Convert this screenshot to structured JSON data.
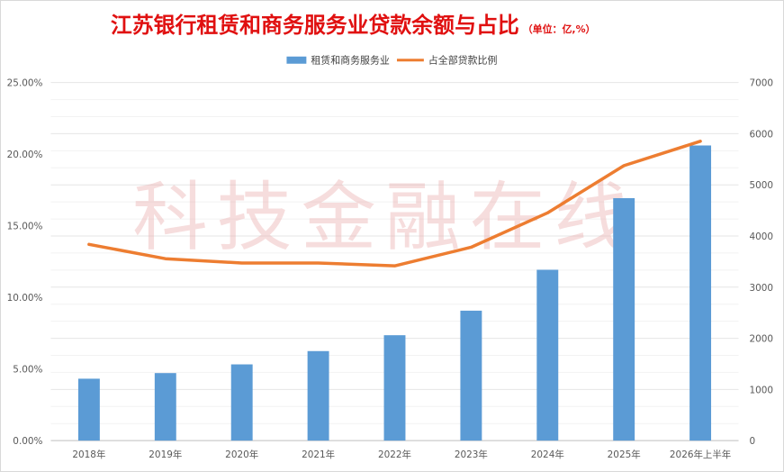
{
  "chart_data": {
    "type": "bar+line",
    "title": "江苏银行租赁和商务服务业贷款余额与占比",
    "title_unit": "（单位：亿,%）",
    "watermark": "科技金融在线",
    "categories": [
      "2018年",
      "2019年",
      "2020年",
      "2021年",
      "2022年",
      "2023年",
      "2024年",
      "2025年",
      "2026年上半年"
    ],
    "series": [
      {
        "name": "租赁和商务服务业",
        "type": "bar",
        "axis": "right",
        "color": "#5b9bd5",
        "values": [
          1210,
          1320,
          1490,
          1750,
          2060,
          2540,
          3340,
          4740,
          5770
        ]
      },
      {
        "name": "占全部贷款比例",
        "type": "line",
        "axis": "left",
        "color": "#ed7d31",
        "values": [
          13.7,
          12.7,
          12.4,
          12.4,
          12.2,
          13.5,
          15.9,
          19.2,
          20.9
        ]
      }
    ],
    "y_left": {
      "min": 0,
      "max": 25,
      "ticks": [
        "0.00%",
        "5.00%",
        "10.00%",
        "15.00%",
        "20.00%",
        "25.00%"
      ]
    },
    "y_right": {
      "min": 0,
      "max": 7000,
      "ticks": [
        "0",
        "1000",
        "2000",
        "3000",
        "4000",
        "5000",
        "6000",
        "7000"
      ]
    },
    "grid": true,
    "legend_position": "top"
  }
}
